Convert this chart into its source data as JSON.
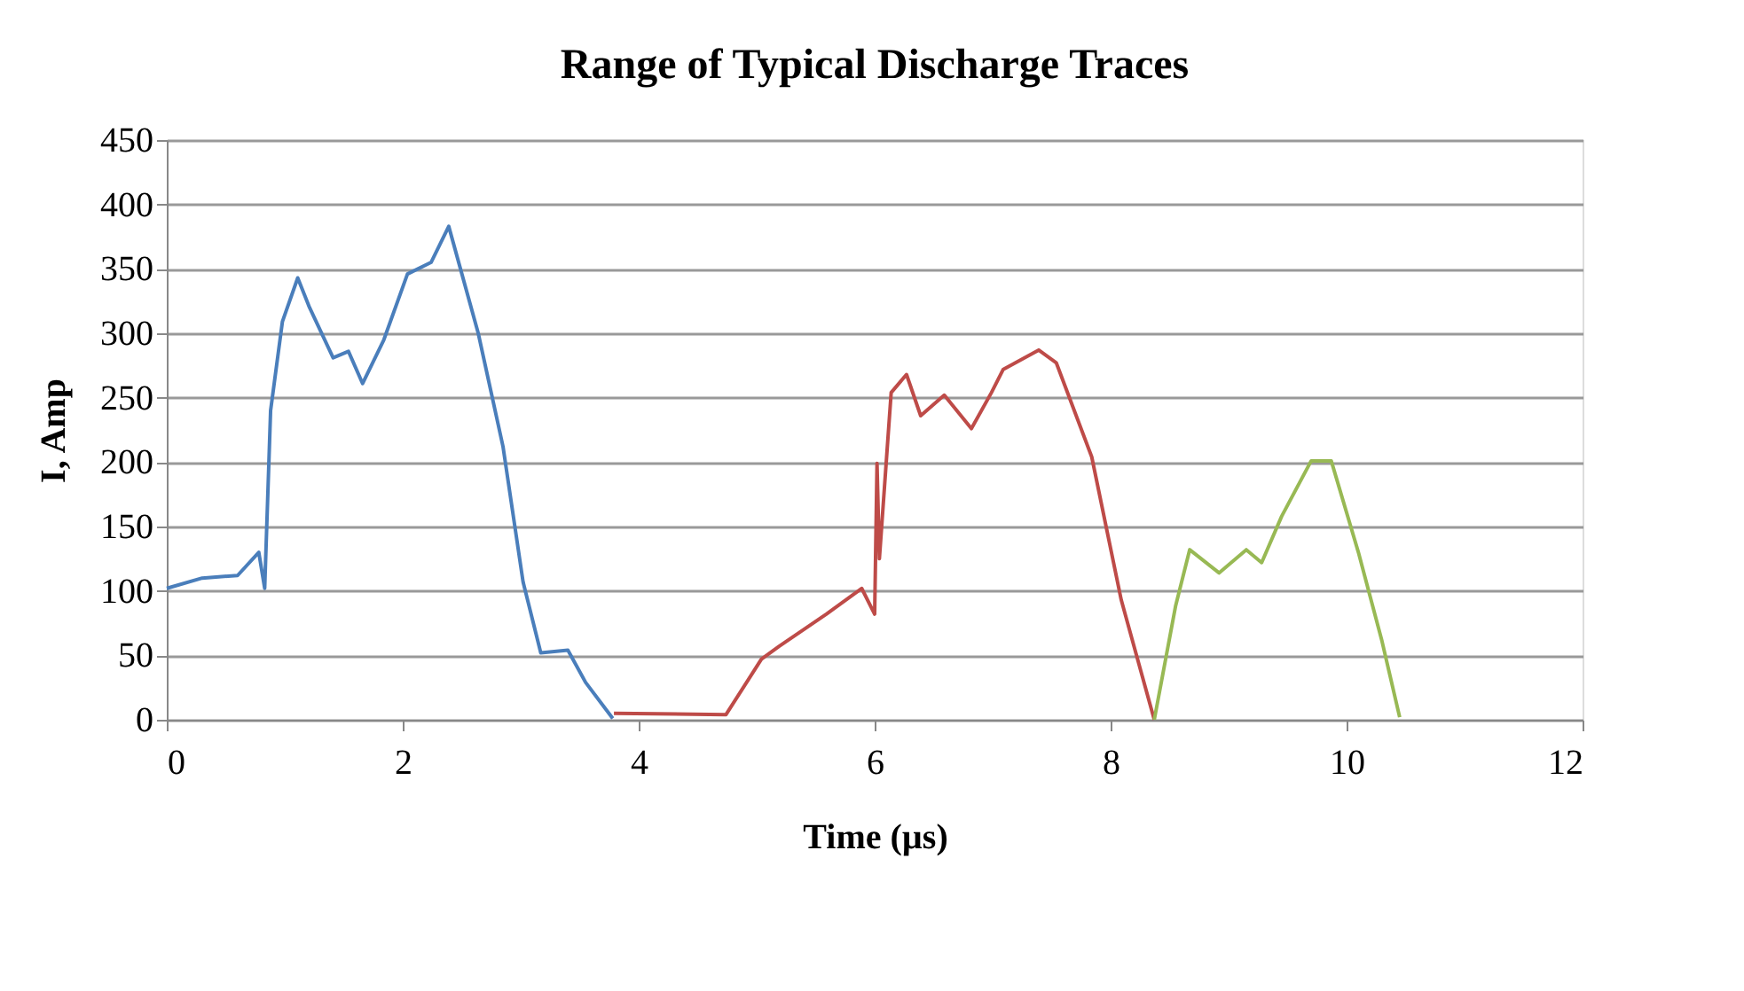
{
  "chart_data": {
    "type": "line",
    "title": "Range of Typical Discharge Traces",
    "xlabel": "Time (µs)",
    "ylabel": "I, Amp",
    "xlim": [
      0,
      12
    ],
    "xticks": [
      0,
      2,
      4,
      6,
      8,
      10,
      12
    ],
    "ylim": [
      0,
      450
    ],
    "yticks": [
      0,
      50,
      100,
      150,
      200,
      250,
      300,
      350,
      400,
      450
    ],
    "grid": "y",
    "legend": false,
    "marker": "none",
    "line_style": "solid",
    "series": [
      {
        "color": "#4a7ebb",
        "x": [
          0,
          0.3,
          0.6,
          0.78,
          0.83,
          0.88,
          0.98,
          1.11,
          1.21,
          1.41,
          1.54,
          1.66,
          1.84,
          2.04,
          2.24,
          2.39,
          2.64,
          2.85,
          3.02,
          3.17,
          3.4,
          3.55,
          3.78
        ],
        "values": [
          102,
          110,
          112,
          130,
          102,
          240,
          309,
          343,
          320,
          281,
          286,
          261,
          295,
          346,
          355,
          383,
          300,
          212,
          107,
          52,
          54,
          29,
          1
        ]
      },
      {
        "color": "#be4b48",
        "x": [
          3.79,
          4.74,
          5.04,
          5.19,
          5.59,
          5.89,
          6.0,
          6.02,
          6.04,
          6.14,
          6.27,
          6.39,
          6.59,
          6.82,
          6.99,
          7.09,
          7.39,
          7.54,
          7.84,
          8.09,
          8.37
        ],
        "values": [
          5,
          4,
          47,
          57,
          82,
          102,
          82,
          199,
          125,
          254,
          268,
          236,
          252,
          226,
          254,
          272,
          287,
          277,
          204,
          93,
          0
        ]
      },
      {
        "color": "#98b954",
        "x": [
          8.37,
          8.55,
          8.67,
          8.92,
          9.15,
          9.28,
          9.45,
          9.7,
          9.87,
          10.1,
          10.3,
          10.45
        ],
        "values": [
          0,
          88,
          132,
          114,
          132,
          122,
          158,
          201,
          201,
          130,
          61,
          2
        ]
      }
    ]
  }
}
